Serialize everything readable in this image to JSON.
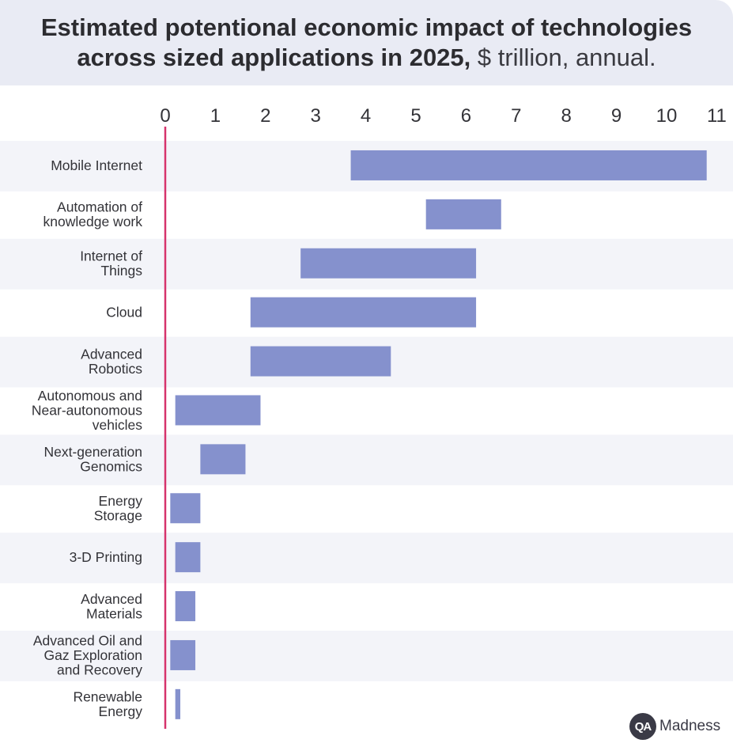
{
  "title": {
    "line1": "Estimated potentional economic impact of technologies",
    "line2_bold": "across sized applications in 2025,",
    "line2_normal": " $ trillion, annual."
  },
  "watermark": {
    "badge": "QA",
    "text": "Madness"
  },
  "colors": {
    "bar": "#8591cd",
    "axis": "#d6336c",
    "band": "#f3f4f9",
    "header_bg": "#e9ebf4",
    "text": "#333338"
  },
  "chart_data": {
    "type": "bar",
    "orientation": "horizontal",
    "style": "floating range",
    "x_axis_position": "top",
    "xlim": [
      0,
      11
    ],
    "xticks": [
      "0",
      "1",
      "2",
      "3",
      "4",
      "5",
      "6",
      "7",
      "8",
      "9",
      "10",
      "11"
    ],
    "categories": [
      [
        "Mobile Internet"
      ],
      [
        "Automation of",
        "knowledge work"
      ],
      [
        "Internet of",
        "Things"
      ],
      [
        "Cloud"
      ],
      [
        "Advanced",
        "Robotics"
      ],
      [
        "Autonomous and",
        "Near-autonomous",
        "vehicles"
      ],
      [
        "Next-generation",
        "Genomics"
      ],
      [
        "Energy",
        "Storage"
      ],
      [
        "3-D Printing"
      ],
      [
        "Advanced",
        "Materials"
      ],
      [
        "Advanced Oil and",
        "Gaz Exploration",
        "and Recovery"
      ],
      [
        "Renewable",
        "Energy"
      ]
    ],
    "ranges": [
      [
        3.7,
        10.8
      ],
      [
        5.2,
        6.7
      ],
      [
        2.7,
        6.2
      ],
      [
        1.7,
        6.2
      ],
      [
        1.7,
        4.5
      ],
      [
        0.2,
        1.9
      ],
      [
        0.7,
        1.6
      ],
      [
        0.1,
        0.7
      ],
      [
        0.2,
        0.7
      ],
      [
        0.2,
        0.6
      ],
      [
        0.1,
        0.6
      ],
      [
        0.2,
        0.3
      ]
    ]
  }
}
